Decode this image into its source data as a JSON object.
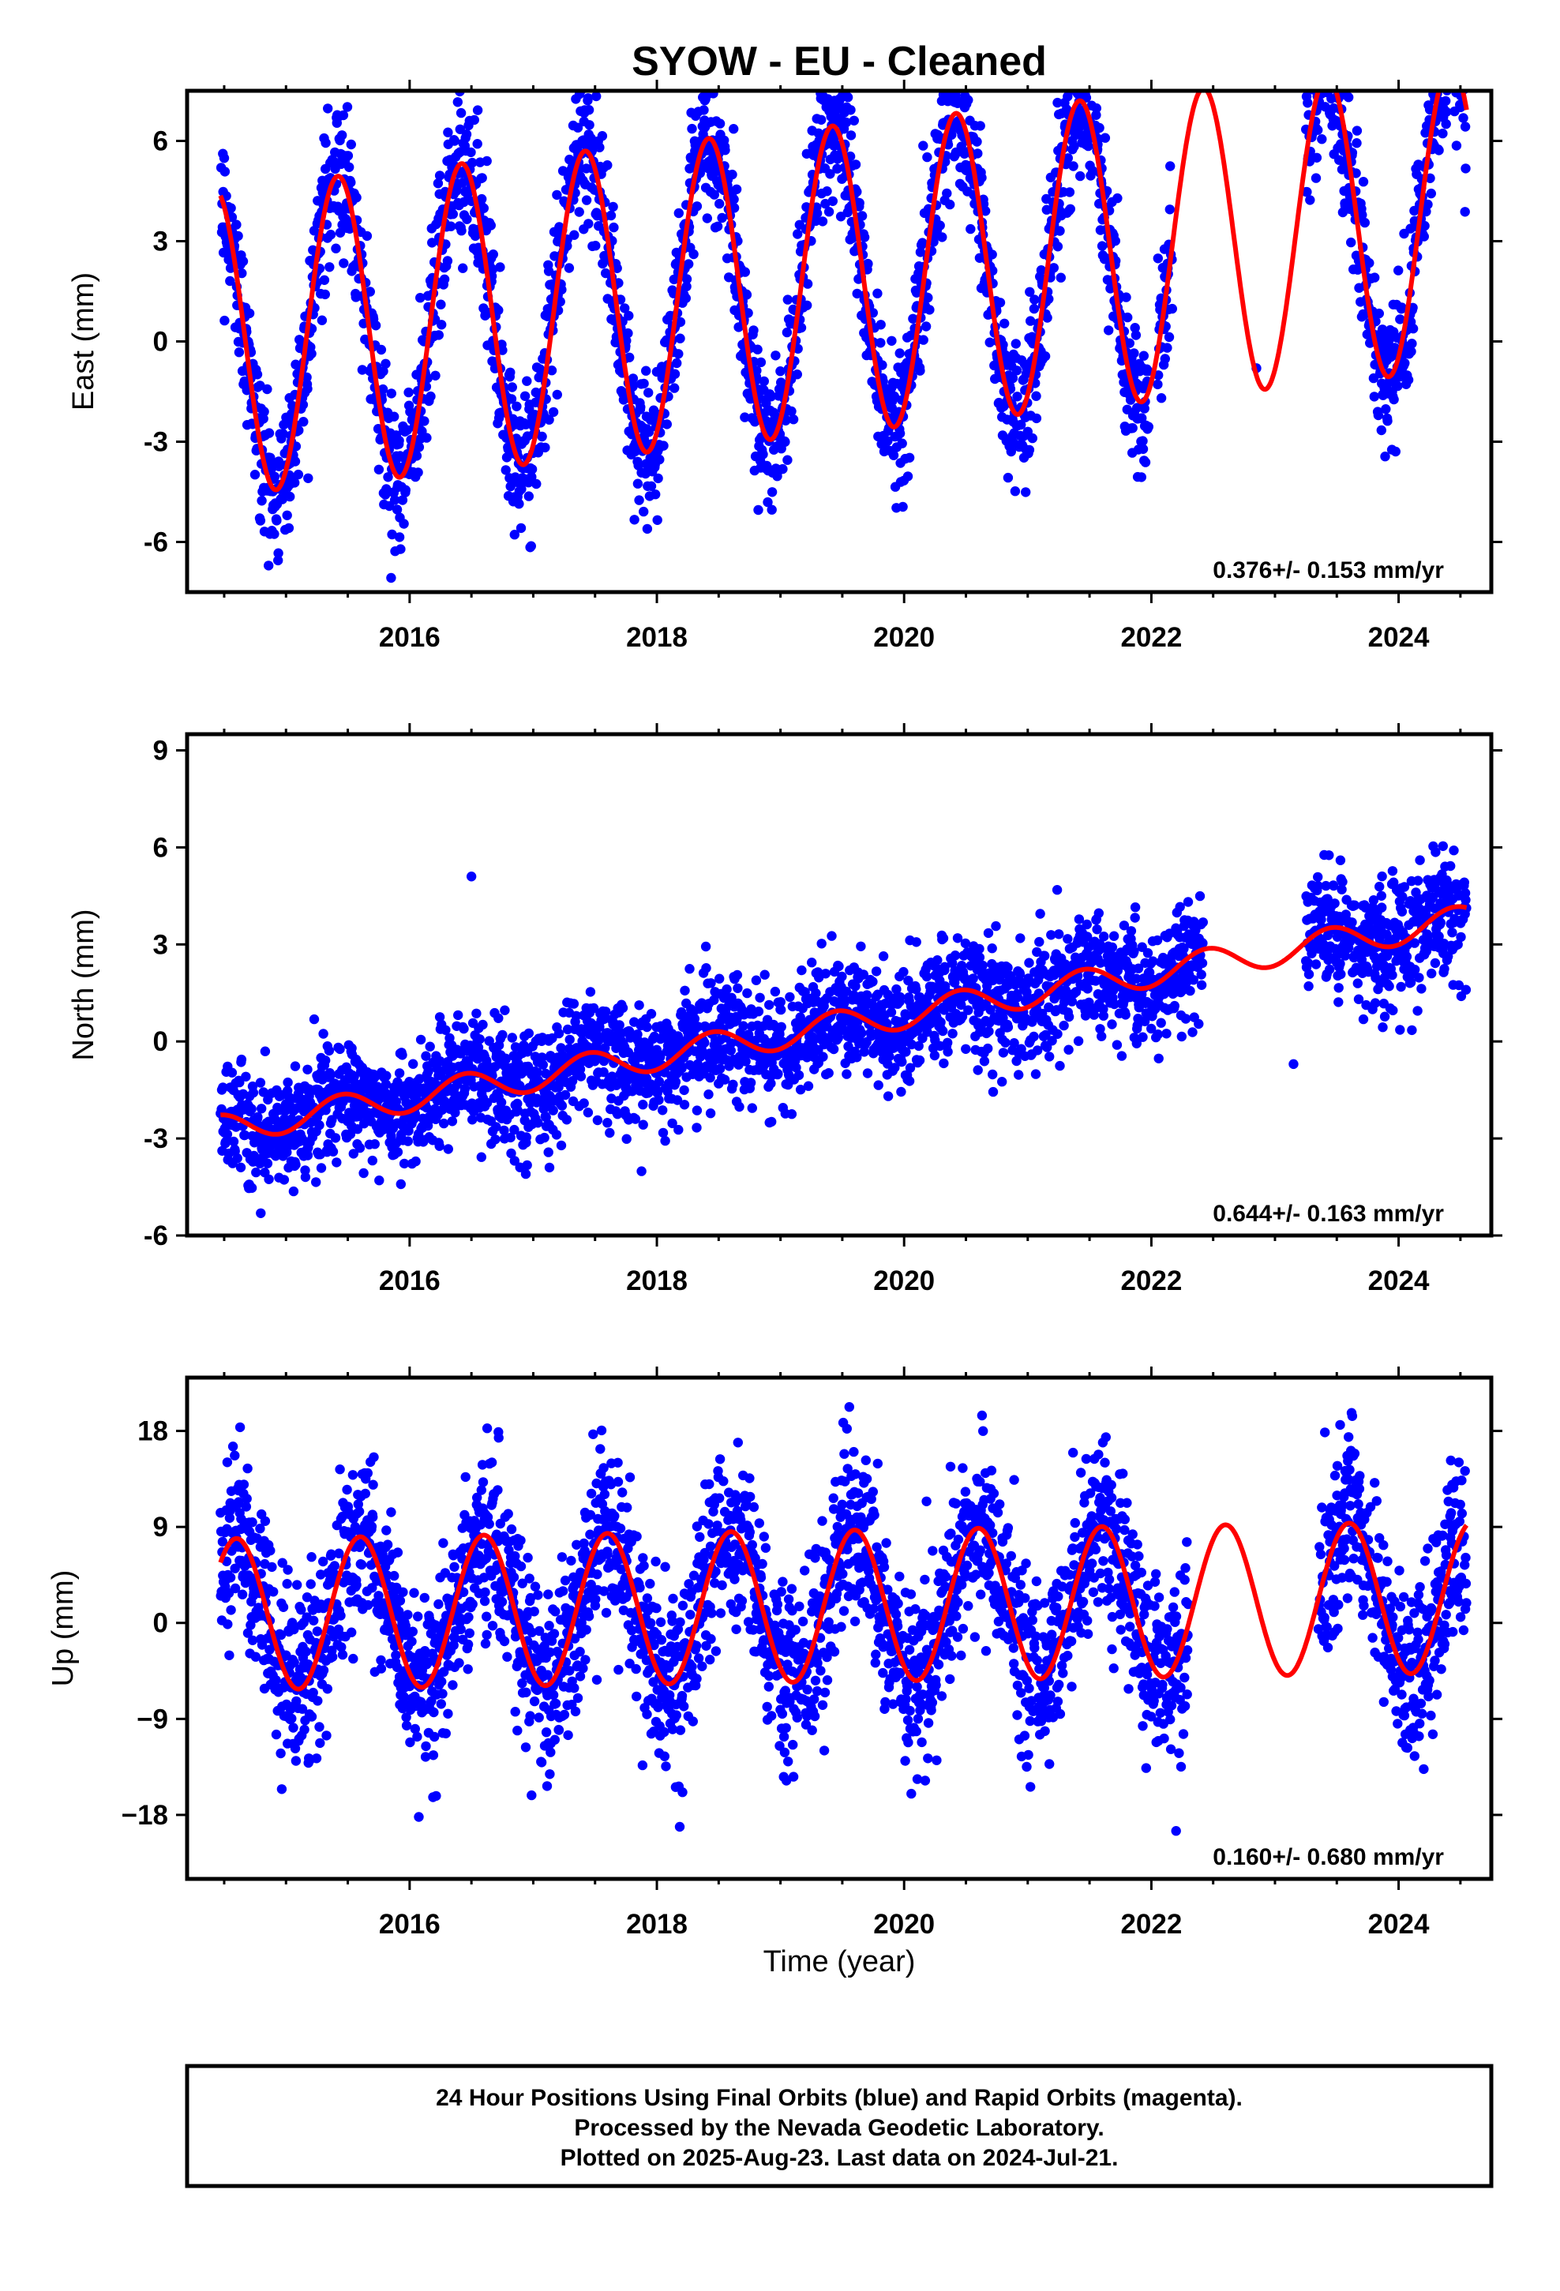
{
  "title": "SYOW  - EU - Cleaned",
  "colors": {
    "final_points": "#0000ff",
    "model_curve": "#ff0000",
    "frame": "#000000"
  },
  "x_axis_label": "Time (year)",
  "footer": {
    "line1": "24 Hour Positions Using Final Orbits (blue) and Rapid Orbits (magenta).",
    "line2": "Processed by the Nevada Geodetic Laboratory.",
    "line3": "Plotted on 2025-Aug-23. Last data on 2024-Jul-21."
  },
  "chart_data": [
    {
      "type": "scatter",
      "ylabel": "East (mm)",
      "xlim": [
        2014.2,
        2024.75
      ],
      "ylim": [
        -7.5,
        7.5
      ],
      "xticks": [
        2016,
        2018,
        2020,
        2022,
        2024
      ],
      "yticks": [
        -6,
        -3,
        0,
        3,
        6
      ],
      "rate_text": "0.376+/- 0.153 mm/yr",
      "data_start": 2014.47,
      "data_end": 2024.55,
      "gaps": [
        [
          2021.98,
          2022.05
        ],
        [
          2022.17,
          2023.25
        ]
      ],
      "isolated_points": [
        [
          2022.85,
          -0.8
        ]
      ],
      "model": {
        "offset_at_2014_5": 0.0,
        "rate": 0.376,
        "amplitude": 4.6,
        "peak_phase": 0.42
      },
      "scatter_sigma": 1.1,
      "series": [
        {
          "values_desc": "daily positions"
        },
        {
          "values_desc": "model"
        }
      ]
    },
    {
      "type": "scatter",
      "ylabel": "North (mm)",
      "xlim": [
        2014.2,
        2024.75
      ],
      "ylim": [
        -6.0,
        9.5
      ],
      "xticks": [
        2016,
        2018,
        2020,
        2022,
        2024
      ],
      "yticks": [
        -6,
        -3,
        0,
        3,
        6,
        9
      ],
      "rate_text": "0.644+/- 0.163 mm/yr",
      "data_start": 2014.47,
      "data_end": 2024.55,
      "gaps": [
        [
          2022.42,
          2023.25
        ]
      ],
      "isolated_points": [
        [
          2023.15,
          -0.7
        ],
        [
          2016.5,
          5.1
        ]
      ],
      "model": {
        "offset_at_2014_5": -2.7,
        "rate": 0.644,
        "amplitude": 0.45,
        "peak_phase": 0.45
      },
      "scatter_sigma": 0.9,
      "series": [
        {
          "values_desc": "daily positions"
        },
        {
          "values_desc": "model"
        }
      ]
    },
    {
      "type": "scatter",
      "ylabel": "Up (mm)",
      "xlim": [
        2014.2,
        2024.75
      ],
      "ylim": [
        -24,
        23
      ],
      "xticks": [
        2016,
        2018,
        2020,
        2022,
        2024
      ],
      "yticks": [
        -18,
        -9,
        0,
        9,
        18
      ],
      "yticklabels": [
        "−18",
        "−9",
        "0",
        "9",
        "18"
      ],
      "rate_text": "0.160+/- 0.680 mm/yr",
      "data_start": 2014.47,
      "data_end": 2024.55,
      "gaps": [
        [
          2022.3,
          2023.35
        ]
      ],
      "isolated_points": [
        [
          2022.2,
          -19.5
        ]
      ],
      "model": {
        "offset_at_2014_5": 0.8,
        "rate": 0.16,
        "amplitude": 7.1,
        "peak_phase": 0.6
      },
      "scatter_sigma": 4.2,
      "series": [
        {
          "values_desc": "daily positions"
        },
        {
          "values_desc": "model"
        }
      ]
    }
  ]
}
